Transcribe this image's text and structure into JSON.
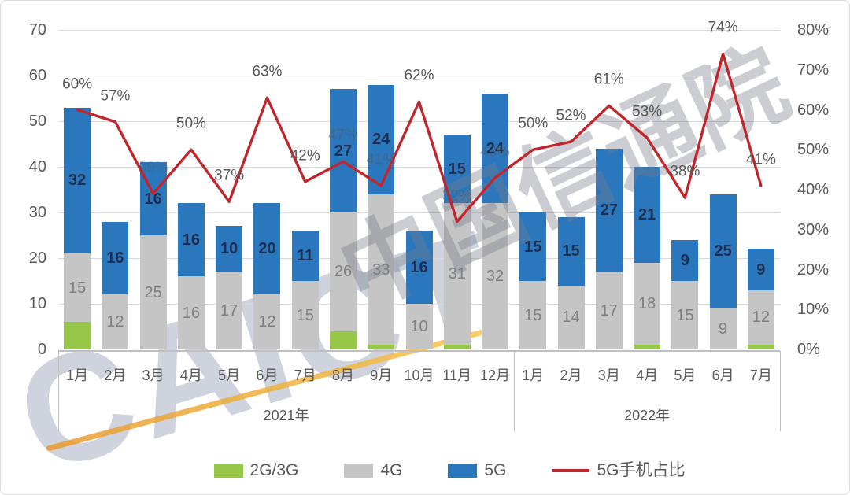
{
  "watermark": {
    "latin": "CAICT",
    "cjk": "中国信通院"
  },
  "legend": {
    "items": [
      {
        "label": "2G/3G",
        "color": "#97c748",
        "marker": "box"
      },
      {
        "label": "4G",
        "color": "#c5c5c5",
        "marker": "box"
      },
      {
        "label": "5G",
        "color": "#2b77be",
        "marker": "box"
      },
      {
        "label": "5G手机占比",
        "color": "#c2262d",
        "marker": "line"
      }
    ]
  },
  "chart_data": {
    "type": "bar",
    "subtype": "stacked-bars-with-line",
    "title": "",
    "grid": true,
    "left_axis": {
      "min": 0,
      "max": 70,
      "step": 10,
      "ticks": [
        "0",
        "10",
        "20",
        "30",
        "40",
        "50",
        "60",
        "70"
      ]
    },
    "right_axis": {
      "min": 0,
      "max": 80,
      "step": 10,
      "ticks": [
        "0%",
        "10%",
        "20%",
        "30%",
        "40%",
        "50%",
        "60%",
        "70%",
        "80%"
      ]
    },
    "categories": [
      "1月",
      "2月",
      "3月",
      "4月",
      "5月",
      "6月",
      "7月",
      "8月",
      "9月",
      "10月",
      "11月",
      "12月",
      "1月",
      "2月",
      "3月",
      "4月",
      "5月",
      "6月",
      "7月"
    ],
    "year_groups": [
      {
        "label": "2021年",
        "months": 12
      },
      {
        "label": "2022年",
        "months": 7
      }
    ],
    "series": [
      {
        "name": "2G/3G",
        "color": "#97c748",
        "show_labels": false,
        "values": [
          6,
          0,
          0,
          0,
          0,
          0,
          0,
          4,
          1,
          0,
          1,
          0,
          0,
          0,
          0,
          1,
          0,
          0,
          1
        ]
      },
      {
        "name": "4G",
        "color": "#c5c5c5",
        "show_labels": true,
        "values": [
          15,
          12,
          25,
          16,
          17,
          12,
          15,
          26,
          33,
          10,
          31,
          32,
          15,
          14,
          17,
          18,
          15,
          9,
          12
        ]
      },
      {
        "name": "5G",
        "color": "#2b77be",
        "show_labels": true,
        "values": [
          32,
          16,
          16,
          16,
          10,
          20,
          11,
          27,
          24,
          16,
          15,
          24,
          15,
          15,
          27,
          21,
          9,
          25,
          9
        ]
      }
    ],
    "line": {
      "name": "5G手机占比",
      "color": "#c2262d",
      "values": [
        60,
        57,
        39,
        50,
        37,
        63,
        42,
        47,
        41,
        62,
        32,
        43,
        50,
        52,
        61,
        53,
        38,
        74,
        41
      ],
      "labels": [
        "60%",
        "57%",
        "39%",
        "50%",
        "37%",
        "63%",
        "42%",
        "47%",
        "41%",
        "62%",
        "32%",
        "43%",
        "50%",
        "52%",
        "61%",
        "53%",
        "38%",
        "74%",
        "41%"
      ],
      "dim_label_indices": [
        2,
        7,
        8,
        10,
        11
      ]
    }
  }
}
